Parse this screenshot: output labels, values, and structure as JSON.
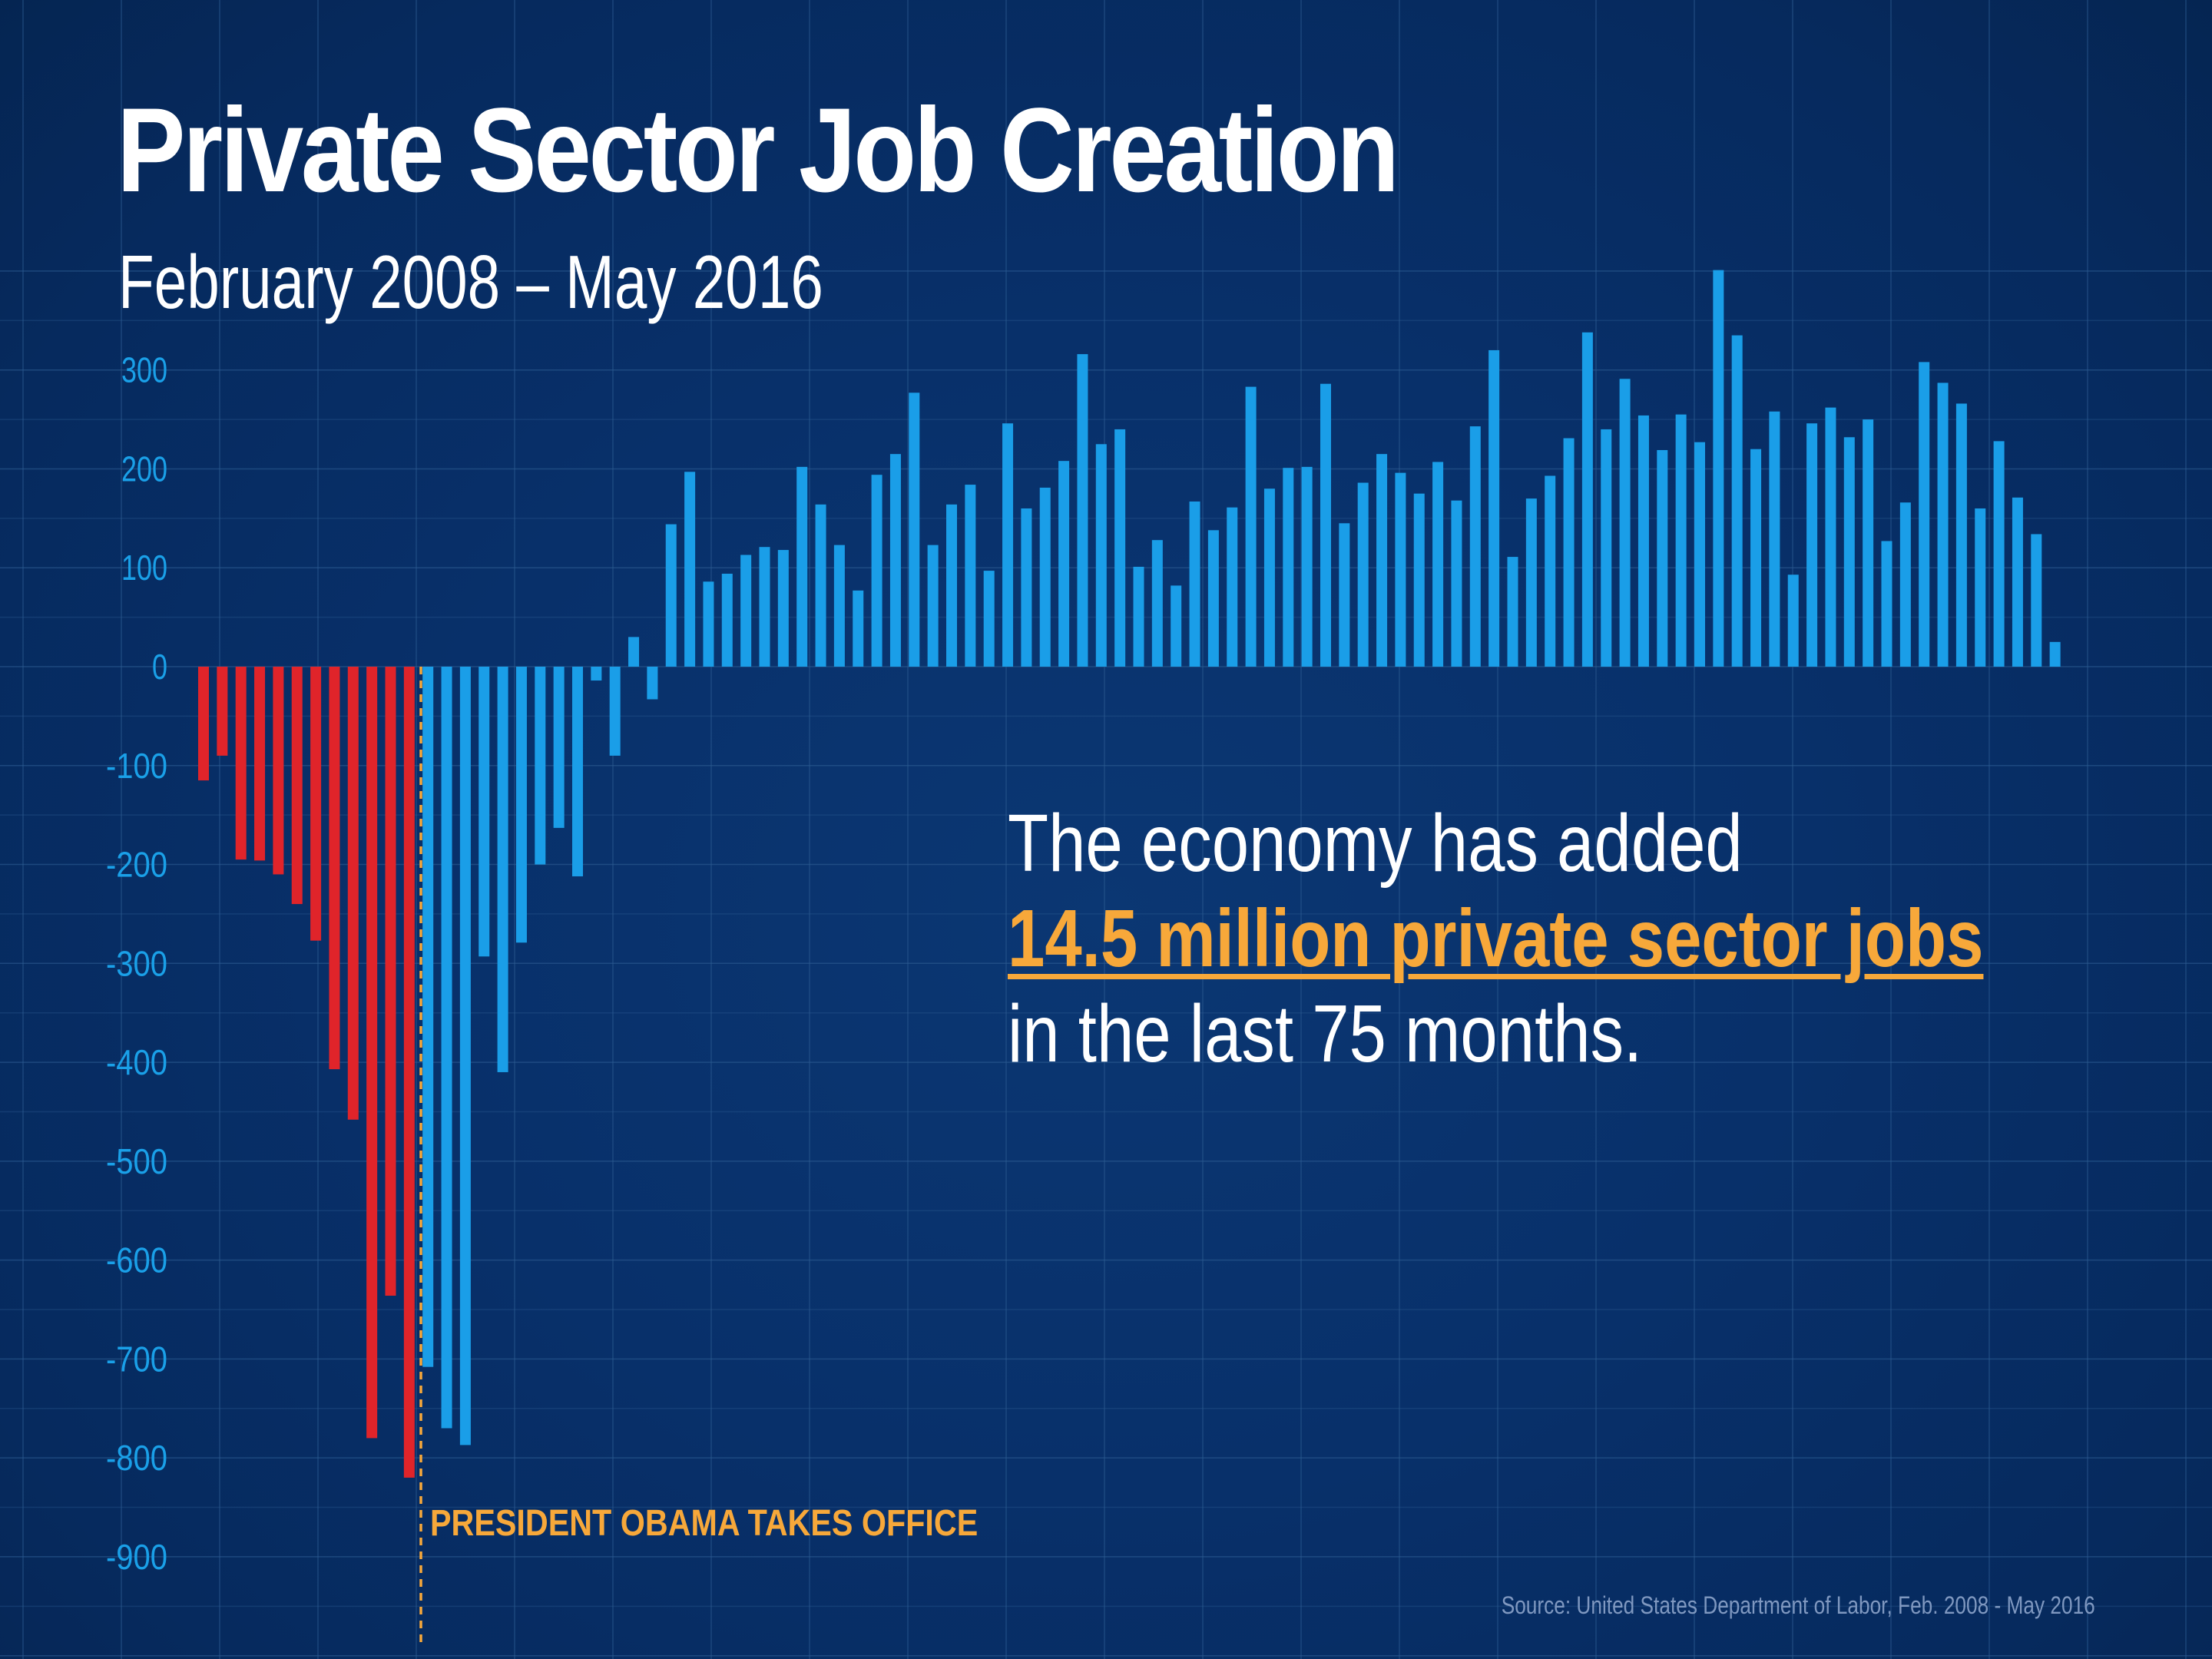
{
  "chart_data": {
    "type": "bar",
    "title": "Private Sector Job Creation",
    "subtitle": "February 2008 – May 2016",
    "xlabel": "",
    "ylabel": "",
    "ylim": [
      -900,
      400
    ],
    "yticks": [
      300,
      200,
      100,
      0,
      -100,
      -200,
      -300,
      -400,
      -500,
      -600,
      -700,
      -800,
      -900
    ],
    "grid": true,
    "series": [
      {
        "values": [
          -115,
          -90,
          -195,
          -196,
          -210,
          -240,
          -277,
          -407,
          -458,
          -780,
          -636,
          -820
        ],
        "color": "#e0242a"
      },
      {
        "values": [
          -708,
          -770,
          -787,
          -293,
          -410,
          -279,
          -200,
          -163,
          -212,
          -14,
          -90,
          30,
          -33,
          144,
          197,
          86,
          94,
          113,
          121,
          118,
          202,
          164,
          123,
          77,
          194,
          215,
          277,
          123,
          164,
          184,
          97,
          246,
          160,
          181,
          208,
          316,
          225,
          240,
          101,
          128,
          82,
          167,
          138,
          161,
          283,
          180,
          201,
          202,
          286,
          145,
          186,
          215,
          196,
          175,
          207,
          168,
          243,
          320,
          111,
          170,
          193,
          231,
          338,
          240,
          291,
          254,
          219,
          255,
          227,
          401,
          335,
          220,
          258,
          93,
          246,
          262,
          232,
          250,
          127,
          166,
          308,
          287,
          266,
          160,
          228,
          171,
          134,
          25
        ],
        "color": "#1a9ee8"
      }
    ],
    "annotation": {
      "line1": "The economy has added",
      "highlight": "14.5 million private sector jobs",
      "line3": "in the last 75 months."
    },
    "event_label": "PRESIDENT OBAMA TAKES OFFICE",
    "source": "Source: United States Department of Labor,  Feb. 2008 - May 2016"
  },
  "colors": {
    "accent": "#f7a83a",
    "tick_label": "#1aa0e8",
    "grid": "#2d5c92"
  }
}
